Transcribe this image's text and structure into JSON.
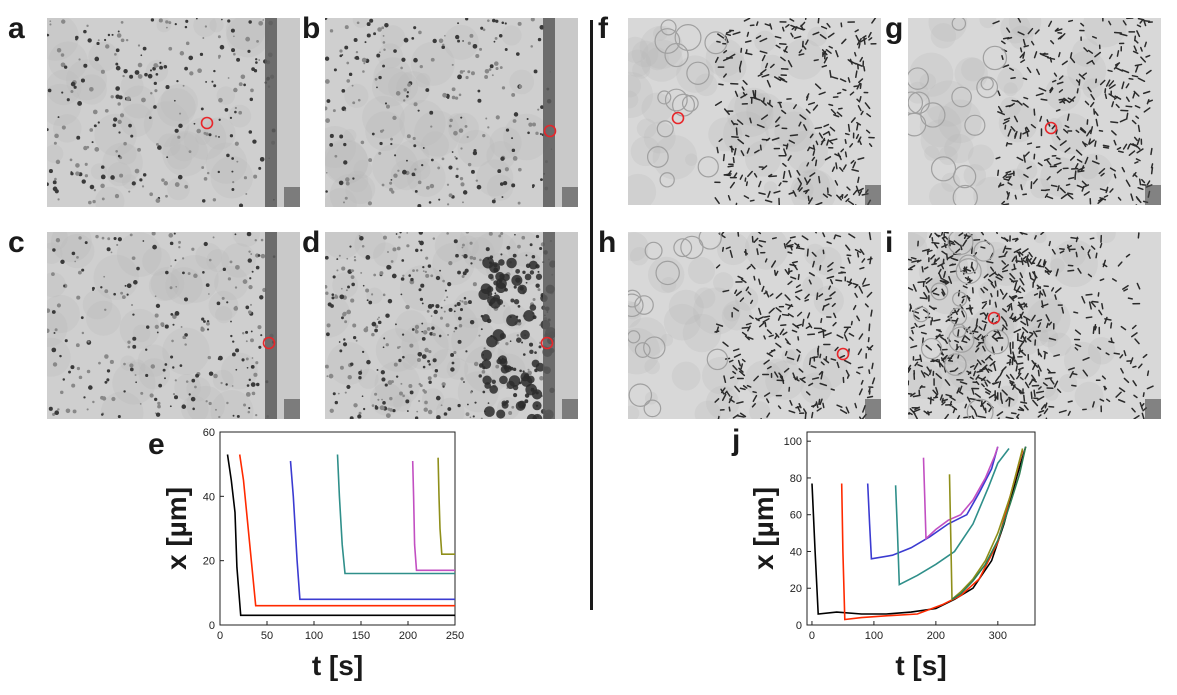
{
  "panels": {
    "a": "a",
    "b": "b",
    "c": "c",
    "d": "d",
    "e": "e",
    "f": "f",
    "g": "g",
    "h": "h",
    "i": "i",
    "j": "j"
  },
  "colors": {
    "marker": "#e8262a",
    "micro_bg_left": "#cfcfcf",
    "micro_bg_right": "#d8d8d8"
  },
  "chart_data": [
    {
      "panel": "e",
      "type": "line",
      "xlabel": "t [s]",
      "ylabel": "x [µm]",
      "xlim": [
        0,
        250
      ],
      "ylim": [
        0,
        60
      ],
      "xticks": [
        0,
        50,
        100,
        150,
        200,
        250
      ],
      "yticks": [
        0,
        20,
        40,
        60
      ],
      "series": [
        {
          "color": "#000000",
          "x": [
            8,
            12,
            16,
            18,
            22,
            250
          ],
          "y": [
            53,
            45,
            35,
            18,
            3,
            3
          ]
        },
        {
          "color": "#ff2a00",
          "x": [
            21,
            25,
            30,
            35,
            38,
            250
          ],
          "y": [
            53,
            45,
            30,
            15,
            6,
            6
          ]
        },
        {
          "color": "#3b3bd1",
          "x": [
            75,
            78,
            82,
            85,
            250
          ],
          "y": [
            51,
            40,
            20,
            8,
            8
          ]
        },
        {
          "color": "#2f8f8a",
          "x": [
            125,
            127,
            130,
            133,
            250
          ],
          "y": [
            53,
            40,
            25,
            16,
            16
          ]
        },
        {
          "color": "#c24fc2",
          "x": [
            205,
            206,
            207,
            209,
            250
          ],
          "y": [
            51,
            40,
            25,
            17,
            17
          ]
        },
        {
          "color": "#8f8f1a",
          "x": [
            232,
            233,
            234,
            236,
            250
          ],
          "y": [
            52,
            40,
            30,
            22,
            22
          ]
        }
      ]
    },
    {
      "panel": "j",
      "type": "line",
      "xlabel": "t [s]",
      "ylabel": "x [µm]",
      "xlim": [
        -8,
        360
      ],
      "ylim": [
        0,
        105
      ],
      "xticks": [
        0,
        100,
        200,
        300
      ],
      "yticks": [
        0,
        20,
        40,
        60,
        80,
        100
      ],
      "series": [
        {
          "color": "#000000",
          "x": [
            0,
            5,
            10,
            40,
            80,
            120,
            160,
            200,
            230,
            260,
            290,
            310,
            330,
            345
          ],
          "y": [
            77,
            40,
            6,
            7,
            6,
            6,
            7,
            9,
            14,
            20,
            35,
            55,
            80,
            97
          ]
        },
        {
          "color": "#ff2a00",
          "x": [
            48,
            50,
            53,
            80,
            120,
            170,
            210,
            240,
            270,
            300,
            320,
            340
          ],
          "y": [
            77,
            40,
            3,
            4,
            5,
            6,
            11,
            16,
            25,
            45,
            70,
            95
          ]
        },
        {
          "color": "#3b3bd1",
          "x": [
            90,
            93,
            96,
            130,
            160,
            190,
            220,
            250,
            270,
            290,
            300
          ],
          "y": [
            77,
            55,
            36,
            38,
            42,
            48,
            55,
            60,
            72,
            85,
            97
          ]
        },
        {
          "color": "#2f8f8a",
          "x": [
            135,
            138,
            141,
            170,
            200,
            230,
            260,
            285,
            300,
            318
          ],
          "y": [
            76,
            50,
            22,
            27,
            33,
            40,
            55,
            75,
            88,
            96
          ]
        },
        {
          "color": "#c24fc2",
          "x": [
            180,
            182,
            184,
            200,
            220,
            240,
            260,
            280,
            295,
            300
          ],
          "y": [
            91,
            70,
            47,
            52,
            57,
            60,
            68,
            80,
            92,
            97
          ]
        },
        {
          "color": "#8f8f1a",
          "x": [
            222,
            224,
            226,
            240,
            260,
            280,
            300,
            320,
            340
          ],
          "y": [
            82,
            50,
            14,
            18,
            25,
            35,
            50,
            70,
            96
          ]
        },
        {
          "color": "#2e7d52",
          "x": [
            226,
            240,
            260,
            280,
            300,
            320,
            335,
            345
          ],
          "y": [
            14,
            17,
            24,
            33,
            46,
            66,
            82,
            97
          ]
        }
      ]
    }
  ]
}
